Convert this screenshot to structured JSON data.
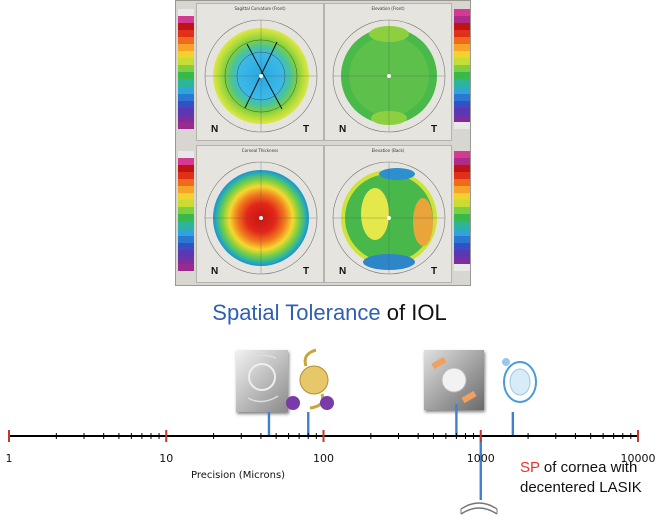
{
  "title": {
    "highlight": "Spatial Tolerance",
    "rest": "of IOL"
  },
  "maps": [
    {
      "title": "Sagittal Curvature (Front)",
      "left_letter": "N",
      "right_letter": "T"
    },
    {
      "title": "Elevation (Front)",
      "left_letter": "N",
      "right_letter": "T"
    },
    {
      "title": "Corneal Thickness",
      "left_letter": "N",
      "right_letter": "T"
    },
    {
      "title": "Elevation (Back)",
      "left_letter": "N",
      "right_letter": "T"
    }
  ],
  "axis": {
    "type": "log",
    "range": [
      1,
      10000
    ],
    "ticks": [
      {
        "value": 1,
        "label": "1"
      },
      {
        "value": 10,
        "label": "10"
      },
      {
        "value": 100,
        "label": "100"
      },
      {
        "value": 1000,
        "label": "1000"
      },
      {
        "value": 10000,
        "label": "10000"
      }
    ],
    "title": "Precision (Microns)"
  },
  "markers": [
    {
      "name": "monofocal-iol",
      "value": 45
    },
    {
      "name": "toric-iol",
      "value": 80
    },
    {
      "name": "angled-iol",
      "value": 700
    },
    {
      "name": "ring-iol",
      "value": 1600
    },
    {
      "name": "cornea-sp",
      "value": 1000
    }
  ],
  "colors": {
    "title_blue": "#2f5fb3",
    "marker_blue": "#3f7fd0",
    "sp_red": "#e8322a"
  },
  "note": {
    "sp": "SP",
    "line1_rest": "of cornea with",
    "line2": "decentered LASIK"
  }
}
